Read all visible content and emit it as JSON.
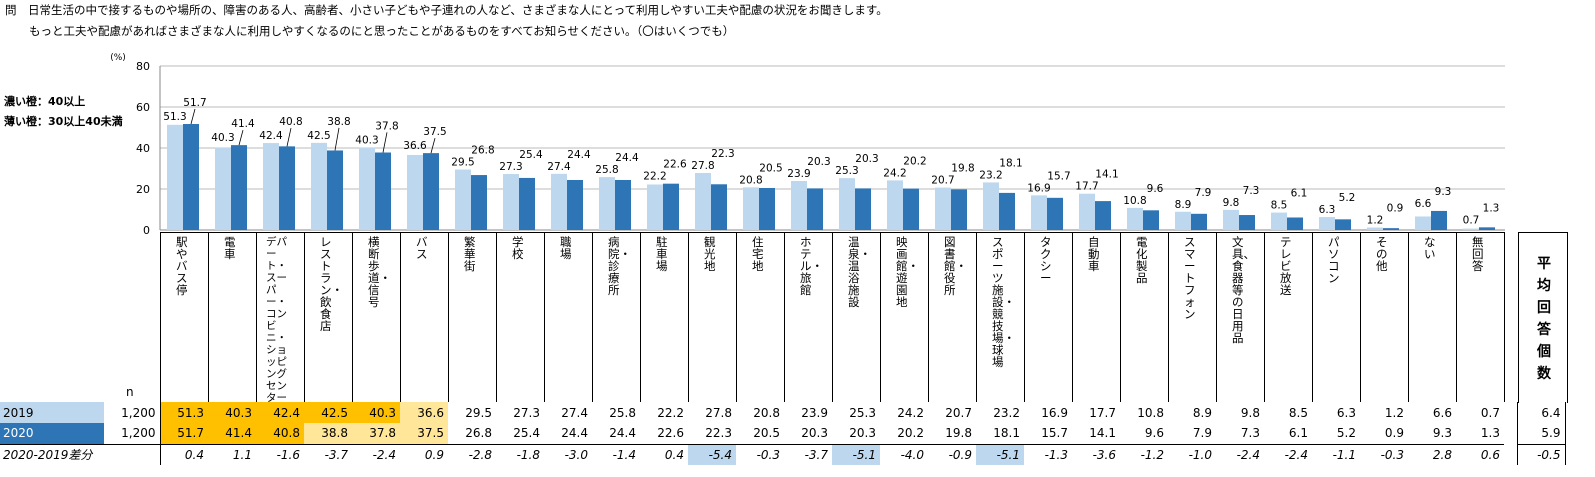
{
  "question": {
    "line1": "問　日常生活の中で接するものや場所の、障害のある人、高齢者、小さい子どもや子連れの人など、さまざまな人にとって利用しやすい工夫や配慮の状況をお聞きします。",
    "line2": "もっと工夫や配慮があればさまざまな人に利用しやすくなるのにと思ったことがあるものをすべてお知らせください。（〇はいくつでも）"
  },
  "legend": {
    "dark": "濃い橙：40以上",
    "light": "薄い橙：30以上40未満"
  },
  "colors": {
    "s2019": "#BDD7EE",
    "s2020": "#2E75B6",
    "orange_dark": "#FFC000",
    "orange_light": "#FFE699",
    "blue_neg": "#BDD7EE",
    "header2019": "#BDD7EE",
    "header2020": "#2E75B6"
  },
  "chart_data": {
    "type": "bar",
    "ylabel": "(%)",
    "ylim": [
      0,
      80
    ],
    "yticks": [
      "0",
      "20",
      "40",
      "60",
      "80"
    ],
    "categories": [
      "駅やバス停",
      "電車",
      "デパート・スーパー・コンビニ・ショッピングセンター",
      "レストラン・飲食店",
      "横断歩道・信号",
      "バス",
      "繁華街",
      "学校",
      "職場",
      "病院・診療所",
      "駐車場",
      "観光地",
      "住宅地",
      "ホテル・旅館",
      "温泉・温浴施設",
      "映画館・遊園地",
      "図書館・役所",
      "スポーツ施設・競技場・球場",
      "タクシー",
      "自動車",
      "電化製品",
      "スマートフォン",
      "文具、食器等の日用品",
      "テレビ放送",
      "パソコン",
      "その他",
      "ない",
      "無回答"
    ],
    "series": [
      {
        "name": "2019",
        "values": [
          51.3,
          40.3,
          42.4,
          42.5,
          40.3,
          36.6,
          29.5,
          27.3,
          27.4,
          25.8,
          22.2,
          27.8,
          20.8,
          23.9,
          25.3,
          24.2,
          20.7,
          23.2,
          16.9,
          17.7,
          10.8,
          8.9,
          9.8,
          8.5,
          6.3,
          1.2,
          6.6,
          0.7
        ]
      },
      {
        "name": "2020",
        "values": [
          51.7,
          41.4,
          40.8,
          38.8,
          37.8,
          37.5,
          26.8,
          25.4,
          24.4,
          24.4,
          22.6,
          22.3,
          20.5,
          20.3,
          20.3,
          20.2,
          19.8,
          18.1,
          15.7,
          14.1,
          9.6,
          7.9,
          7.3,
          6.1,
          5.2,
          0.9,
          9.3,
          1.3
        ]
      }
    ]
  },
  "table": {
    "n_label": "n",
    "rows": [
      {
        "label": "2019",
        "n": "1,200",
        "cells": [
          "51.3",
          "40.3",
          "42.4",
          "42.5",
          "40.3",
          "36.6",
          "29.5",
          "27.3",
          "27.4",
          "25.8",
          "22.2",
          "27.8",
          "20.8",
          "23.9",
          "25.3",
          "24.2",
          "20.7",
          "23.2",
          "16.9",
          "17.7",
          "10.8",
          "8.9",
          "9.8",
          "8.5",
          "6.3",
          "1.2",
          "6.6",
          "0.7"
        ],
        "avg": "6.4"
      },
      {
        "label": "2020",
        "n": "1,200",
        "cells": [
          "51.7",
          "41.4",
          "40.8",
          "38.8",
          "37.8",
          "37.5",
          "26.8",
          "25.4",
          "24.4",
          "24.4",
          "22.6",
          "22.3",
          "20.5",
          "20.3",
          "20.3",
          "20.2",
          "19.8",
          "18.1",
          "15.7",
          "14.1",
          "9.6",
          "7.9",
          "7.3",
          "6.1",
          "5.2",
          "0.9",
          "9.3",
          "1.3"
        ],
        "avg": "5.9"
      },
      {
        "label": "2020-2019差分",
        "n": "",
        "cells": [
          "0.4",
          "1.1",
          "-1.6",
          "-3.7",
          "-2.4",
          "0.9",
          "-2.8",
          "-1.8",
          "-3.0",
          "-1.4",
          "0.4",
          "-5.4",
          "-0.3",
          "-3.7",
          "-5.1",
          "-4.0",
          "-0.9",
          "-5.1",
          "-1.3",
          "-3.6",
          "-1.2",
          "-1.0",
          "-2.4",
          "-2.4",
          "-1.1",
          "-0.3",
          "2.8",
          "0.6"
        ],
        "avg": "-0.5"
      }
    ],
    "avg_header": "平均回答個数"
  }
}
